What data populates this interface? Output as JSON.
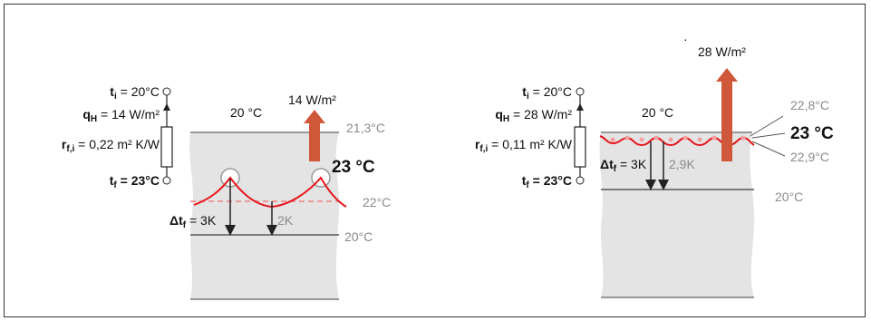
{
  "left": {
    "ti": {
      "sym": "t",
      "sub": "i",
      "val": " = 20°C"
    },
    "qh": {
      "sym": "q",
      "sub": "H",
      "val": " = 14 W/m²"
    },
    "rf": {
      "sym": "r",
      "sub": "f,i",
      "val": " = 0,22 m² K/W"
    },
    "tf": {
      "sym": "t",
      "sub": "f",
      "val": " = 23°C"
    },
    "room_temp": "20 °C",
    "flux_label": "14 W/m²",
    "surface_temp": "21,3°C",
    "pipe_temp": "23 °C",
    "pipe_plane_temp": "22°C",
    "delta": {
      "sym": "Δt",
      "sub": "f",
      "val": " = 3K"
    },
    "delta2": "2K",
    "base_temp": "20°C"
  },
  "right": {
    "ti": {
      "sym": "t",
      "sub": "i",
      "val": " = 20°C"
    },
    "qh": {
      "sym": "q",
      "sub": "H",
      "val": " = 28 W/m²"
    },
    "rf": {
      "sym": "r",
      "sub": "f,i",
      "val": " = 0,11 m² K/W"
    },
    "tf": {
      "sym": "t",
      "sub": "f",
      "val": " = 23°C"
    },
    "dot": "·",
    "flux_label": "28 W/m²",
    "room_temp": "20 °C",
    "surf_top": "22,8°C",
    "pipe_temp": "23 °C",
    "surf_bot": "22,9°C",
    "delta": {
      "sym": "Δt",
      "sub": "f",
      "val": " = 3K"
    },
    "delta2": "2,9K",
    "base_temp": "20°C"
  },
  "colors": {
    "red": "#e8141b",
    "arrow": "#d0583a",
    "slab": "#e4e4e4",
    "line": "#7a7a7a",
    "dashed": "#f08080"
  }
}
